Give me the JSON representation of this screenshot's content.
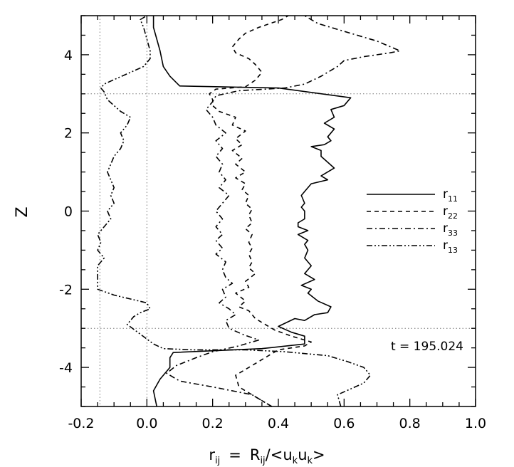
{
  "chart_data": {
    "type": "line",
    "xlabel": {
      "main": "r",
      "main_sub": "ij",
      "eq": "=",
      "rhs": "R",
      "rhs_sub": "ij",
      "slash": "/<u",
      "k1": "k",
      "u2": "u",
      "k2": "k",
      "close": ">"
    },
    "ylabel": "Z",
    "xlim": [
      -0.2,
      1.0
    ],
    "ylim": [
      -5,
      5
    ],
    "xticks": [
      "-0.2",
      "0.0",
      "0.2",
      "0.4",
      "0.6",
      "0.8",
      "1.0"
    ],
    "xtick_values": [
      -0.2,
      0.0,
      0.2,
      0.4,
      0.6,
      0.8,
      1.0
    ],
    "yticks": [
      "-4",
      "-2",
      "0",
      "2",
      "4"
    ],
    "ytick_values": [
      -4,
      -2,
      0,
      2,
      4
    ],
    "annotation": "t = 195.024",
    "reference_lines": {
      "horizontal": [
        3.0,
        -3.0
      ],
      "vertical": [
        -0.143,
        0.0
      ]
    },
    "legend_position": "right",
    "series": [
      {
        "name": "r",
        "sub": "11",
        "dash": "solid",
        "points": [
          [
            0.03,
            -5.0
          ],
          [
            0.02,
            -4.6
          ],
          [
            0.04,
            -4.3
          ],
          [
            0.07,
            -4.0
          ],
          [
            0.07,
            -3.75
          ],
          [
            0.08,
            -3.62
          ],
          [
            0.35,
            -3.52
          ],
          [
            0.48,
            -3.4
          ],
          [
            0.48,
            -3.2
          ],
          [
            0.44,
            -3.1
          ],
          [
            0.4,
            -2.95
          ],
          [
            0.45,
            -2.75
          ],
          [
            0.48,
            -2.8
          ],
          [
            0.51,
            -2.65
          ],
          [
            0.55,
            -2.6
          ],
          [
            0.56,
            -2.45
          ],
          [
            0.52,
            -2.3
          ],
          [
            0.49,
            -2.1
          ],
          [
            0.5,
            -2.0
          ],
          [
            0.47,
            -1.9
          ],
          [
            0.51,
            -1.75
          ],
          [
            0.48,
            -1.6
          ],
          [
            0.5,
            -1.4
          ],
          [
            0.48,
            -1.2
          ],
          [
            0.49,
            -1.0
          ],
          [
            0.48,
            -0.85
          ],
          [
            0.49,
            -0.75
          ],
          [
            0.46,
            -0.6
          ],
          [
            0.49,
            -0.5
          ],
          [
            0.46,
            -0.4
          ],
          [
            0.46,
            -0.3
          ],
          [
            0.48,
            -0.2
          ],
          [
            0.48,
            0.0
          ],
          [
            0.47,
            0.1
          ],
          [
            0.48,
            0.2
          ],
          [
            0.47,
            0.4
          ],
          [
            0.48,
            0.5
          ],
          [
            0.5,
            0.7
          ],
          [
            0.55,
            0.8
          ],
          [
            0.53,
            0.9
          ],
          [
            0.57,
            1.1
          ],
          [
            0.55,
            1.25
          ],
          [
            0.53,
            1.4
          ],
          [
            0.53,
            1.55
          ],
          [
            0.5,
            1.65
          ],
          [
            0.54,
            1.7
          ],
          [
            0.56,
            1.8
          ],
          [
            0.55,
            1.9
          ],
          [
            0.57,
            2.1
          ],
          [
            0.54,
            2.25
          ],
          [
            0.57,
            2.4
          ],
          [
            0.56,
            2.6
          ],
          [
            0.6,
            2.7
          ],
          [
            0.62,
            2.9
          ],
          [
            0.4,
            3.15
          ],
          [
            0.1,
            3.2
          ],
          [
            0.07,
            3.45
          ],
          [
            0.05,
            3.7
          ],
          [
            0.04,
            4.1
          ],
          [
            0.03,
            4.4
          ],
          [
            0.02,
            4.7
          ],
          [
            0.02,
            5.0
          ]
        ]
      },
      {
        "name": "r",
        "sub": "22",
        "dash": "6,5",
        "points": [
          [
            0.38,
            -5.0
          ],
          [
            0.33,
            -4.75
          ],
          [
            0.28,
            -4.5
          ],
          [
            0.27,
            -4.2
          ],
          [
            0.32,
            -3.95
          ],
          [
            0.36,
            -3.75
          ],
          [
            0.4,
            -3.55
          ],
          [
            0.48,
            -3.45
          ],
          [
            0.5,
            -3.35
          ],
          [
            0.44,
            -3.2
          ],
          [
            0.39,
            -3.05
          ],
          [
            0.36,
            -2.9
          ],
          [
            0.33,
            -2.75
          ],
          [
            0.31,
            -2.55
          ],
          [
            0.28,
            -2.45
          ],
          [
            0.3,
            -2.3
          ],
          [
            0.27,
            -2.1
          ],
          [
            0.31,
            -1.95
          ],
          [
            0.3,
            -1.8
          ],
          [
            0.33,
            -1.6
          ],
          [
            0.31,
            -1.45
          ],
          [
            0.32,
            -1.3
          ],
          [
            0.31,
            -1.1
          ],
          [
            0.32,
            -0.95
          ],
          [
            0.31,
            -0.8
          ],
          [
            0.32,
            -0.6
          ],
          [
            0.3,
            -0.45
          ],
          [
            0.32,
            -0.3
          ],
          [
            0.31,
            -0.1
          ],
          [
            0.32,
            0.05
          ],
          [
            0.3,
            0.2
          ],
          [
            0.31,
            0.4
          ],
          [
            0.29,
            0.55
          ],
          [
            0.3,
            0.7
          ],
          [
            0.27,
            0.85
          ],
          [
            0.3,
            1.0
          ],
          [
            0.27,
            1.2
          ],
          [
            0.29,
            1.35
          ],
          [
            0.26,
            1.55
          ],
          [
            0.29,
            1.7
          ],
          [
            0.27,
            1.85
          ],
          [
            0.3,
            2.05
          ],
          [
            0.26,
            2.2
          ],
          [
            0.27,
            2.4
          ],
          [
            0.22,
            2.55
          ],
          [
            0.2,
            2.7
          ],
          [
            0.2,
            2.85
          ],
          [
            0.19,
            3.0
          ],
          [
            0.21,
            3.12
          ],
          [
            0.3,
            3.18
          ],
          [
            0.33,
            3.35
          ],
          [
            0.35,
            3.55
          ],
          [
            0.33,
            3.75
          ],
          [
            0.31,
            3.9
          ],
          [
            0.27,
            4.05
          ],
          [
            0.26,
            4.2
          ],
          [
            0.28,
            4.4
          ],
          [
            0.3,
            4.55
          ],
          [
            0.34,
            4.7
          ],
          [
            0.41,
            4.9
          ],
          [
            0.43,
            5.0
          ]
        ]
      },
      {
        "name": "r",
        "sub": "33",
        "dash": "8,4,2,4",
        "points": [
          [
            0.38,
            -5.0
          ],
          [
            0.35,
            -4.85
          ],
          [
            0.32,
            -4.7
          ],
          [
            0.2,
            -4.5
          ],
          [
            0.1,
            -4.35
          ],
          [
            0.06,
            -4.15
          ],
          [
            0.09,
            -3.95
          ],
          [
            0.15,
            -3.75
          ],
          [
            0.2,
            -3.6
          ],
          [
            0.28,
            -3.45
          ],
          [
            0.34,
            -3.3
          ],
          [
            0.29,
            -3.15
          ],
          [
            0.25,
            -3.0
          ],
          [
            0.24,
            -2.8
          ],
          [
            0.27,
            -2.65
          ],
          [
            0.25,
            -2.5
          ],
          [
            0.22,
            -2.35
          ],
          [
            0.24,
            -2.2
          ],
          [
            0.23,
            -2.0
          ],
          [
            0.26,
            -1.85
          ],
          [
            0.24,
            -1.7
          ],
          [
            0.23,
            -1.5
          ],
          [
            0.24,
            -1.3
          ],
          [
            0.21,
            -1.1
          ],
          [
            0.23,
            -0.95
          ],
          [
            0.21,
            -0.75
          ],
          [
            0.23,
            -0.6
          ],
          [
            0.21,
            -0.4
          ],
          [
            0.23,
            -0.2
          ],
          [
            0.21,
            0.0
          ],
          [
            0.23,
            0.2
          ],
          [
            0.25,
            0.4
          ],
          [
            0.22,
            0.6
          ],
          [
            0.24,
            0.8
          ],
          [
            0.22,
            1.0
          ],
          [
            0.23,
            1.2
          ],
          [
            0.21,
            1.4
          ],
          [
            0.23,
            1.6
          ],
          [
            0.21,
            1.8
          ],
          [
            0.24,
            2.0
          ],
          [
            0.21,
            2.2
          ],
          [
            0.2,
            2.4
          ],
          [
            0.18,
            2.6
          ],
          [
            0.2,
            2.8
          ],
          [
            0.21,
            2.95
          ],
          [
            0.28,
            3.08
          ],
          [
            0.42,
            3.15
          ],
          [
            0.48,
            3.25
          ],
          [
            0.53,
            3.45
          ],
          [
            0.58,
            3.7
          ],
          [
            0.6,
            3.85
          ],
          [
            0.66,
            3.95
          ],
          [
            0.74,
            4.05
          ],
          [
            0.77,
            4.1
          ],
          [
            0.7,
            4.35
          ],
          [
            0.6,
            4.6
          ],
          [
            0.52,
            4.8
          ],
          [
            0.48,
            5.0
          ]
        ]
      },
      {
        "name": "r",
        "sub": "13",
        "dash": "8,3,2,3,2,3",
        "points": [
          [
            0.59,
            -5.0
          ],
          [
            0.58,
            -4.7
          ],
          [
            0.62,
            -4.55
          ],
          [
            0.66,
            -4.4
          ],
          [
            0.68,
            -4.2
          ],
          [
            0.66,
            -4.0
          ],
          [
            0.61,
            -3.85
          ],
          [
            0.55,
            -3.7
          ],
          [
            0.42,
            -3.6
          ],
          [
            0.3,
            -3.55
          ],
          [
            0.14,
            -3.55
          ],
          [
            0.05,
            -3.52
          ],
          [
            0.02,
            -3.4
          ],
          [
            -0.02,
            -3.15
          ],
          [
            -0.06,
            -2.9
          ],
          [
            -0.04,
            -2.7
          ],
          [
            -0.02,
            -2.6
          ],
          [
            0.01,
            -2.5
          ],
          [
            0.0,
            -2.35
          ],
          [
            -0.05,
            -2.25
          ],
          [
            -0.1,
            -2.15
          ],
          [
            -0.15,
            -2.0
          ],
          [
            -0.15,
            -1.8
          ],
          [
            -0.15,
            -1.4
          ],
          [
            -0.13,
            -1.2
          ],
          [
            -0.15,
            -1.0
          ],
          [
            -0.14,
            -0.8
          ],
          [
            -0.15,
            -0.6
          ],
          [
            -0.13,
            -0.4
          ],
          [
            -0.11,
            -0.2
          ],
          [
            -0.12,
            0.0
          ],
          [
            -0.1,
            0.2
          ],
          [
            -0.11,
            0.4
          ],
          [
            -0.1,
            0.6
          ],
          [
            -0.11,
            0.8
          ],
          [
            -0.12,
            1.0
          ],
          [
            -0.11,
            1.2
          ],
          [
            -0.1,
            1.4
          ],
          [
            -0.08,
            1.6
          ],
          [
            -0.07,
            1.8
          ],
          [
            -0.08,
            2.0
          ],
          [
            -0.06,
            2.2
          ],
          [
            -0.05,
            2.4
          ],
          [
            -0.08,
            2.55
          ],
          [
            -0.1,
            2.7
          ],
          [
            -0.12,
            2.85
          ],
          [
            -0.13,
            3.05
          ],
          [
            -0.14,
            3.15
          ],
          [
            -0.13,
            3.25
          ],
          [
            -0.09,
            3.4
          ],
          [
            -0.05,
            3.55
          ],
          [
            -0.01,
            3.7
          ],
          [
            0.01,
            3.9
          ],
          [
            0.01,
            4.1
          ],
          [
            0.0,
            4.4
          ],
          [
            -0.01,
            4.7
          ],
          [
            -0.02,
            4.9
          ],
          [
            0.0,
            5.0
          ]
        ]
      }
    ]
  }
}
